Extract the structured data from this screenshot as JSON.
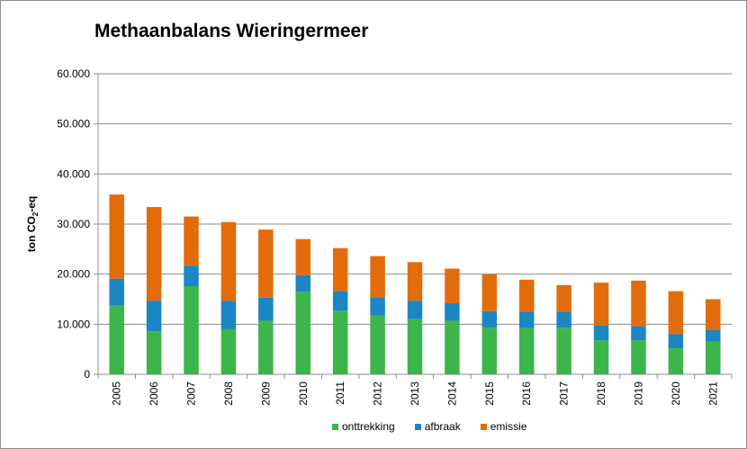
{
  "chart_data": {
    "type": "bar",
    "stacked": true,
    "title": "Methaanbalans Wieringermeer",
    "ylabel": {
      "prefix": "ton CO",
      "sub": "2",
      "suffix": "-eq"
    },
    "xlabel": "",
    "ylim": [
      0,
      60000
    ],
    "yticks": [
      "0",
      "10.000",
      "20.000",
      "30.000",
      "40.000",
      "50.000",
      "60.000"
    ],
    "grid": true,
    "legend_position": "bottom",
    "categories": [
      "2005",
      "2006",
      "2007",
      "2008",
      "2009",
      "2010",
      "2011",
      "2012",
      "2013",
      "2014",
      "2015",
      "2016",
      "2017",
      "2018",
      "2019",
      "2020",
      "2021"
    ],
    "series": [
      {
        "name": "onttrekking",
        "color": "#3cb54a",
        "values": [
          13700,
          8600,
          17600,
          9000,
          10700,
          16500,
          12700,
          11700,
          11000,
          10700,
          9300,
          9200,
          9300,
          6800,
          6800,
          5200,
          6500
        ]
      },
      {
        "name": "afbraak",
        "color": "#1a86c4",
        "values": [
          5400,
          6100,
          4100,
          5700,
          4600,
          3300,
          3900,
          3700,
          3700,
          3500,
          3300,
          3300,
          3100,
          2900,
          2800,
          2800,
          2300
        ]
      },
      {
        "name": "emissie",
        "color": "#e36c0a",
        "values": [
          16800,
          18700,
          9800,
          15700,
          13600,
          7200,
          8600,
          8200,
          7700,
          6900,
          7400,
          6400,
          5400,
          8600,
          9100,
          8600,
          6200
        ]
      }
    ]
  }
}
